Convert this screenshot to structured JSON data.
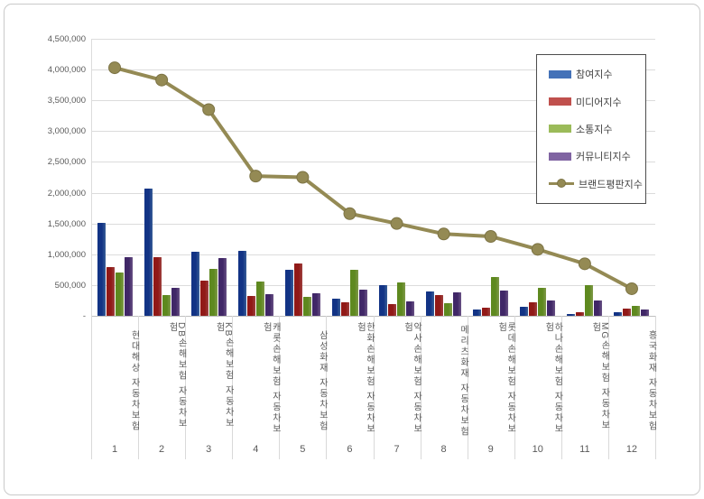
{
  "accent_colors": {
    "participation_blue": "#4472B8",
    "media_red": "#C0504D",
    "communication_green": "#9BBB59",
    "community_purple": "#8064A2",
    "reputation_olive": "#948A54",
    "gridline": "#dcdcdc",
    "axis_text": "#595959",
    "legend_border": "#4d4d4d"
  },
  "chart_data": {
    "type": "bar",
    "title": "",
    "xlabel": "",
    "ylabel": "",
    "categories": [
      "현대해상 자동차보험",
      "DB손해보험 자동차보험",
      "KB손해보험 자동차보험",
      "캐롯손해보험 자동차보험",
      "삼성화재 자동차보험",
      "한화손해보험 자동차보험",
      "악사손해보험 자동차보험",
      "메리츠화재 자동차보험",
      "롯데손해보험 자동차보험",
      "하나손해보험 자동차보험",
      "MG손해보험 자동차보험",
      "흥국화재 자동차보험"
    ],
    "category_numbers": [
      "1",
      "2",
      "3",
      "4",
      "5",
      "6",
      "7",
      "8",
      "9",
      "10",
      "11",
      "12"
    ],
    "series": [
      {
        "name": "참여지수",
        "type": "bar",
        "color": "#4472B8",
        "values": [
          1510000,
          2060000,
          1040000,
          1050000,
          745000,
          275000,
          505000,
          395000,
          100000,
          145000,
          30000,
          60000
        ]
      },
      {
        "name": "미디어지수",
        "type": "bar",
        "color": "#C0504D",
        "values": [
          790000,
          950000,
          575000,
          325000,
          850000,
          215000,
          195000,
          340000,
          135000,
          225000,
          60000,
          115000
        ]
      },
      {
        "name": "소통지수",
        "type": "bar",
        "color": "#9BBB59",
        "values": [
          700000,
          340000,
          755000,
          555000,
          305000,
          745000,
          540000,
          205000,
          630000,
          450000,
          505000,
          160000
        ]
      },
      {
        "name": "커뮤니티지수",
        "type": "bar",
        "color": "#8064A2",
        "values": [
          960000,
          460000,
          945000,
          345000,
          365000,
          430000,
          235000,
          375000,
          415000,
          255000,
          250000,
          105000
        ]
      },
      {
        "name": "브랜드평판지수",
        "type": "line",
        "color": "#948A54",
        "values": [
          4030000,
          3830000,
          3350000,
          2270000,
          2250000,
          1660000,
          1500000,
          1330000,
          1290000,
          1080000,
          845000,
          440000
        ]
      }
    ],
    "ylim": [
      0,
      4500000
    ],
    "ytick_step": 500000,
    "ytick_labels": [
      "-",
      "500,000",
      "1,000,000",
      "1,500,000",
      "2,000,000",
      "2,500,000",
      "3,000,000",
      "3,500,000",
      "4,000,000",
      "4,500,000"
    ],
    "grid": true,
    "legend_position": "top-right",
    "legend_entries": [
      "참여지수",
      "미디어지수",
      "소통지수",
      "커뮤니티지수",
      "브랜드평판지수"
    ]
  }
}
